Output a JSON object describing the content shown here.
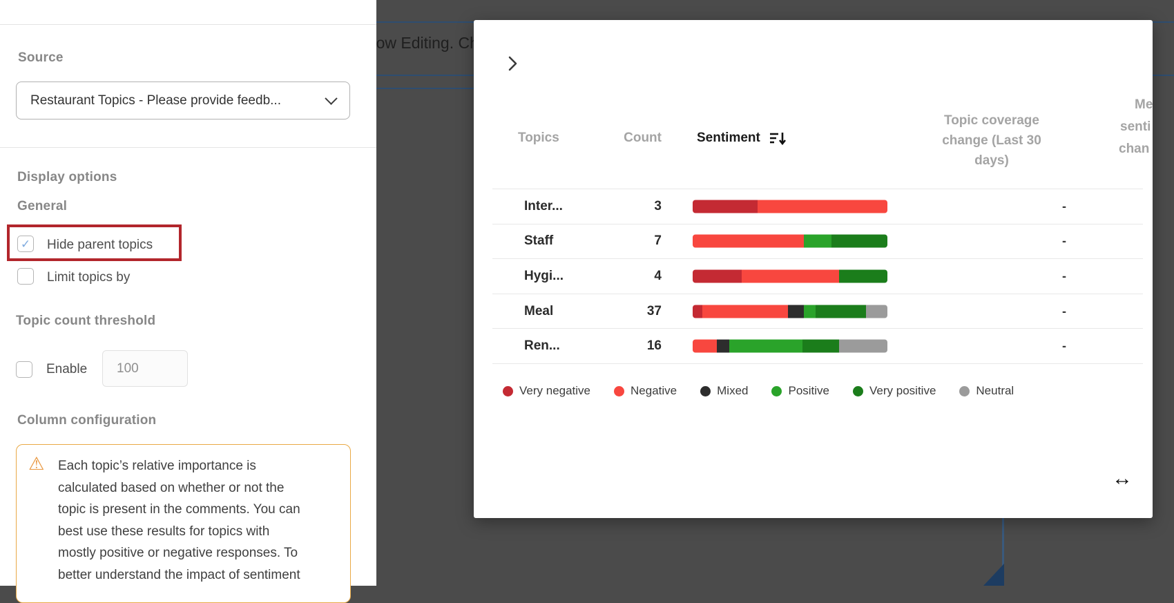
{
  "background": {
    "banner_text": "Now Editing. Ch",
    "overlay_color": "#4b4b4b",
    "accent_line_color": "#2e4d70"
  },
  "panel": {
    "source_label": "Source",
    "source_value": "Restaurant Topics - Please provide feedb...",
    "display_options_label": "Display options",
    "general_label": "General",
    "hide_parent_topics": {
      "label": "Hide parent topics",
      "checked": true,
      "checkmark": "✓"
    },
    "limit_topics_by": {
      "label": "Limit topics by",
      "checked": false
    },
    "topic_count_threshold_label": "Topic count threshold",
    "enable": {
      "label": "Enable",
      "checked": false
    },
    "threshold": {
      "value": "100"
    },
    "column_configuration_label": "Column configuration",
    "warning": {
      "icon": "⚠",
      "lines": [
        "Each topic’s relative importance is",
        "calculated based on whether or not the",
        "topic is present in the comments. You can",
        "best use these results for topics with",
        "mostly positive or negative responses. To",
        "better understand the impact of sentiment"
      ]
    },
    "highlight_color": "#b2262c"
  },
  "modal": {
    "table": {
      "headers": {
        "topics": "Topics",
        "count": "Count",
        "sentiment": "Sentiment",
        "coverage": "Topic coverage change (Last 30 days)",
        "truncated_lines": [
          "Me",
          "senti",
          "chan"
        ]
      },
      "sentiment_colors": {
        "very_negative": "#c42a33",
        "negative": "#f8473f",
        "mixed": "#2d2d2d",
        "positive": "#2aa32a",
        "very_positive": "#1b7d1b",
        "neutral": "#9b9b9b"
      },
      "rows": [
        {
          "topic": "Inter...",
          "count": "3",
          "coverage_change": "-",
          "sentiment_segments": [
            {
              "type": "very_negative",
              "fraction": 0.333
            },
            {
              "type": "negative",
              "fraction": 0.667
            }
          ]
        },
        {
          "topic": "Staff",
          "count": "7",
          "coverage_change": "-",
          "sentiment_segments": [
            {
              "type": "negative",
              "fraction": 0.571
            },
            {
              "type": "positive",
              "fraction": 0.143
            },
            {
              "type": "very_positive",
              "fraction": 0.286
            }
          ]
        },
        {
          "topic": "Hygi...",
          "count": "4",
          "coverage_change": "-",
          "sentiment_segments": [
            {
              "type": "very_negative",
              "fraction": 0.25
            },
            {
              "type": "negative",
              "fraction": 0.5
            },
            {
              "type": "very_positive",
              "fraction": 0.25
            }
          ]
        },
        {
          "topic": "Meal",
          "count": "37",
          "coverage_change": "-",
          "sentiment_segments": [
            {
              "type": "very_negative",
              "fraction": 0.05
            },
            {
              "type": "negative",
              "fraction": 0.44
            },
            {
              "type": "mixed",
              "fraction": 0.08
            },
            {
              "type": "positive",
              "fraction": 0.06
            },
            {
              "type": "very_positive",
              "fraction": 0.26
            },
            {
              "type": "neutral",
              "fraction": 0.11
            }
          ]
        },
        {
          "topic": "Ren...",
          "count": "16",
          "coverage_change": "-",
          "sentiment_segments": [
            {
              "type": "negative",
              "fraction": 0.125
            },
            {
              "type": "mixed",
              "fraction": 0.0625
            },
            {
              "type": "positive",
              "fraction": 0.375
            },
            {
              "type": "very_positive",
              "fraction": 0.1875
            },
            {
              "type": "neutral",
              "fraction": 0.25
            }
          ]
        }
      ]
    },
    "legend": [
      {
        "label": "Very negative",
        "color": "#c42a33"
      },
      {
        "label": "Negative",
        "color": "#f8473f"
      },
      {
        "label": "Mixed",
        "color": "#2d2d2d"
      },
      {
        "label": "Positive",
        "color": "#2aa32a"
      },
      {
        "label": "Very positive",
        "color": "#1b7d1b"
      },
      {
        "label": "Neutral",
        "color": "#9b9b9b"
      }
    ],
    "resize_cursor_glyph": "↔"
  }
}
